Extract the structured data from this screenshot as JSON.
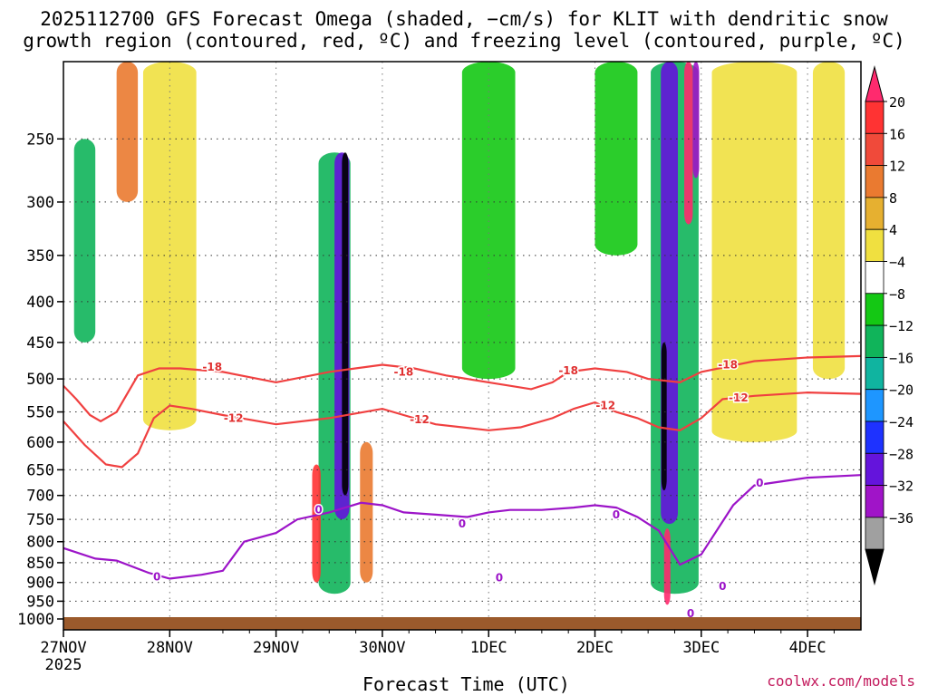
{
  "header": {
    "title_line1": "2025112700 GFS Forecast Omega (shaded, −cm/s) for KLIT with dendritic snow",
    "title_line2": "growth region (contoured, red, ºC) and freezing level (contoured, purple, ºC)"
  },
  "footer": {
    "x_axis_title": "Forecast Time (UTC)",
    "credit": "coolwx.com/models"
  },
  "chart_data": {
    "type": "heatmap",
    "x_axis": {
      "unit": "time",
      "ticks": [
        "27NOV",
        "28NOV",
        "29NOV",
        "30NOV",
        "1DEC",
        "2DEC",
        "3DEC",
        "4DEC"
      ],
      "first_tick_year": "2025",
      "range": [
        "2025-11-27 00Z",
        "2025-12-04 12Z"
      ],
      "grid": true
    },
    "y_axis": {
      "unit": "hPa",
      "ticks": [
        250,
        300,
        350,
        400,
        450,
        500,
        550,
        600,
        650,
        700,
        750,
        800,
        850,
        900,
        950,
        1000
      ],
      "range": [
        1000,
        200
      ],
      "scale": "log",
      "grid": true
    },
    "colorbar": {
      "labels": [
        "20",
        "16",
        "12",
        "8",
        "4",
        "−4",
        "−8",
        "−12",
        "−16",
        "−20",
        "−24",
        "−28",
        "−32",
        "−36"
      ],
      "colors": [
        "#ff2a6e",
        "#ff3333",
        "#f04a3a",
        "#ea7a30",
        "#e6b030",
        "#f0e040",
        "#ffffff",
        "#14c814",
        "#10b45a",
        "#10b4a0",
        "#1e96ff",
        "#1e32ff",
        "#6414dc",
        "#a014c8",
        "#a0a0a0",
        "#000000"
      ],
      "placement": "right"
    },
    "contours": [
      {
        "name": "-18",
        "color": "#f04040",
        "days": [
          0.0,
          0.12,
          0.25,
          0.35,
          0.5,
          0.7,
          0.9,
          1.1,
          1.5,
          2.0,
          2.5,
          3.0,
          3.3,
          3.6,
          4.0,
          4.4,
          4.6,
          4.75,
          5.0,
          5.3,
          5.5,
          5.8,
          6.0,
          6.5,
          7.0,
          7.5
        ],
        "hpa": [
          510,
          530,
          555,
          565,
          550,
          495,
          485,
          485,
          490,
          505,
          490,
          480,
          485,
          495,
          505,
          515,
          505,
          490,
          485,
          490,
          500,
          505,
          490,
          475,
          470,
          468
        ]
      },
      {
        "name": "-12",
        "color": "#f04040",
        "days": [
          0.0,
          0.2,
          0.4,
          0.55,
          0.7,
          0.85,
          1.0,
          1.2,
          1.5,
          2.0,
          2.5,
          3.0,
          3.2,
          3.5,
          4.0,
          4.3,
          4.6,
          4.8,
          5.0,
          5.2,
          5.4,
          5.6,
          5.8,
          6.0,
          6.2,
          6.5,
          7.0,
          7.5
        ],
        "hpa": [
          565,
          605,
          640,
          645,
          620,
          560,
          540,
          545,
          555,
          570,
          560,
          545,
          555,
          570,
          580,
          575,
          560,
          545,
          535,
          550,
          560,
          575,
          580,
          560,
          530,
          525,
          520,
          522
        ]
      },
      {
        "name": "0",
        "color": "#9c14c8",
        "days": [
          0.0,
          0.3,
          0.5,
          0.8,
          1.0,
          1.3,
          1.5,
          1.7,
          2.0,
          2.2,
          2.5,
          2.8,
          3.0,
          3.2,
          3.5,
          3.8,
          4.0,
          4.2,
          4.5,
          4.8,
          5.0,
          5.2,
          5.4,
          5.6,
          5.8,
          6.0,
          6.3,
          6.5,
          7.0,
          7.5
        ],
        "hpa": [
          815,
          840,
          845,
          875,
          890,
          880,
          870,
          800,
          780,
          750,
          735,
          715,
          720,
          735,
          740,
          745,
          735,
          730,
          730,
          725,
          720,
          725,
          745,
          775,
          855,
          830,
          720,
          680,
          665,
          660
        ]
      }
    ],
    "contour_labels": [
      {
        "text": "-18",
        "day": 1.4,
        "hpa": 483
      },
      {
        "text": "-18",
        "day": 3.2,
        "hpa": 490
      },
      {
        "text": "-18",
        "day": 4.75,
        "hpa": 488
      },
      {
        "text": "-18",
        "day": 6.25,
        "hpa": 480
      },
      {
        "text": "-12",
        "day": 1.6,
        "hpa": 560
      },
      {
        "text": "-12",
        "day": 3.35,
        "hpa": 562
      },
      {
        "text": "-12",
        "day": 5.1,
        "hpa": 540
      },
      {
        "text": "-12",
        "day": 6.35,
        "hpa": 528
      },
      {
        "text": "0",
        "day": 0.88,
        "hpa": 885
      },
      {
        "text": "0",
        "day": 2.4,
        "hpa": 730
      },
      {
        "text": "0",
        "day": 3.75,
        "hpa": 760
      },
      {
        "text": "0",
        "day": 4.1,
        "hpa": 888
      },
      {
        "text": "0",
        "day": 5.2,
        "hpa": 740
      },
      {
        "text": "0",
        "day": 6.55,
        "hpa": 675
      },
      {
        "text": "0",
        "day": 6.2,
        "hpa": 910
      },
      {
        "text": "0",
        "day": 5.9,
        "hpa": 985
      }
    ],
    "shaded_features": [
      {
        "day": 2.65,
        "width": 0.06,
        "p_top": 260,
        "p_bot": 700,
        "value": -36
      },
      {
        "day": 2.62,
        "width": 0.14,
        "p_top": 260,
        "p_bot": 750,
        "value": -24
      },
      {
        "day": 2.55,
        "width": 0.3,
        "p_top": 260,
        "p_bot": 930,
        "value": -8
      },
      {
        "day": 2.38,
        "width": 0.08,
        "p_top": 640,
        "p_bot": 900,
        "value": 16
      },
      {
        "day": 2.85,
        "width": 0.12,
        "p_top": 600,
        "p_bot": 900,
        "value": 8
      },
      {
        "day": 5.65,
        "width": 0.05,
        "p_top": 450,
        "p_bot": 690,
        "value": -36
      },
      {
        "day": 5.7,
        "width": 0.16,
        "p_top": 200,
        "p_bot": 760,
        "value": -24
      },
      {
        "day": 5.75,
        "width": 0.45,
        "p_top": 200,
        "p_bot": 930,
        "value": -8
      },
      {
        "day": 5.68,
        "width": 0.06,
        "p_top": 770,
        "p_bot": 960,
        "value": 20
      },
      {
        "day": 5.95,
        "width": 0.06,
        "p_top": 200,
        "p_bot": 280,
        "value": -28
      },
      {
        "day": 5.88,
        "width": 0.08,
        "p_top": 200,
        "p_bot": 320,
        "value": 20
      },
      {
        "day": 1.0,
        "width": 0.5,
        "p_top": 200,
        "p_bot": 580,
        "value": 6
      },
      {
        "day": 4.0,
        "width": 0.5,
        "p_top": 200,
        "p_bot": 500,
        "value": -6
      },
      {
        "day": 5.2,
        "width": 0.4,
        "p_top": 200,
        "p_bot": 350,
        "value": -6
      },
      {
        "day": 6.5,
        "width": 0.8,
        "p_top": 200,
        "p_bot": 600,
        "value": 6
      },
      {
        "day": 7.2,
        "width": 0.3,
        "p_top": 200,
        "p_bot": 500,
        "value": 5
      },
      {
        "day": 0.6,
        "width": 0.2,
        "p_top": 200,
        "p_bot": 300,
        "value": 10
      },
      {
        "day": 0.2,
        "width": 0.2,
        "p_top": 250,
        "p_bot": 450,
        "value": -8
      }
    ]
  }
}
